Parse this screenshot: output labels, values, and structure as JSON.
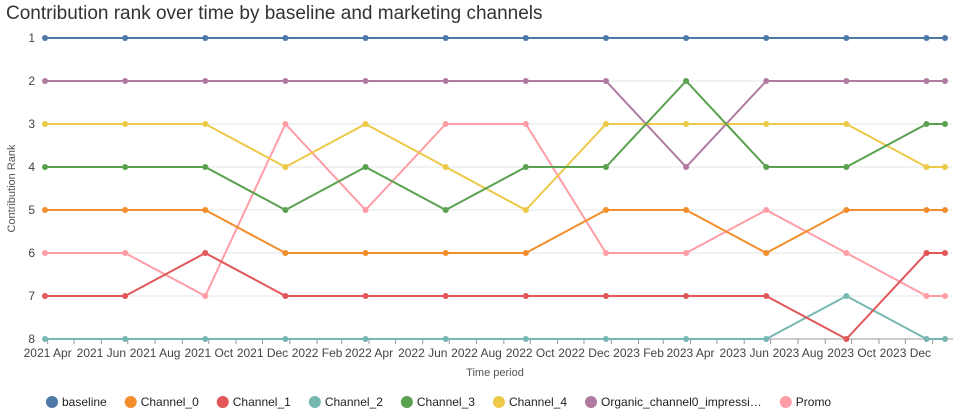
{
  "chart_data": {
    "type": "line",
    "title": "Contribution rank over time by baseline and marketing channels",
    "xlabel": "Time period",
    "ylabel": "Contribution Rank",
    "ylim": [
      1,
      8
    ],
    "y_inverted": true,
    "yticks": [
      "1",
      "2",
      "3",
      "4",
      "5",
      "6",
      "7",
      "8"
    ],
    "xticks": [
      "2021 Apr",
      "2021 Jun",
      "2021 Aug",
      "2021 Oct",
      "2021 Dec",
      "2022 Feb",
      "2022 Apr",
      "2022 Jun",
      "2022 Aug",
      "2022 Oct",
      "2022 Dec",
      "2023 Feb",
      "2023 Apr",
      "2023 Jun",
      "2023 Aug",
      "2023 Oct",
      "2023 Dec"
    ],
    "grid": true,
    "legend_position": "bottom",
    "x": [
      "2021-03-29",
      "2021-06-28",
      "2021-09-27",
      "2021-12-27",
      "2022-03-28",
      "2022-06-27",
      "2022-09-26",
      "2022-12-26",
      "2023-03-27",
      "2023-06-26",
      "2023-09-25",
      "2023-12-25",
      "2024-01-15"
    ],
    "series": [
      {
        "name": "baseline",
        "color": "#4e79a7",
        "values": [
          1,
          1,
          1,
          1,
          1,
          1,
          1,
          1,
          1,
          1,
          1,
          1,
          1
        ]
      },
      {
        "name": "Channel_0",
        "color": "#f28e2b",
        "values": [
          5,
          5,
          5,
          6,
          6,
          6,
          6,
          5,
          5,
          6,
          5,
          5,
          5
        ]
      },
      {
        "name": "Channel_1",
        "color": "#e15759",
        "values": [
          7,
          7,
          6,
          7,
          7,
          7,
          7,
          7,
          7,
          7,
          8,
          6,
          6
        ]
      },
      {
        "name": "Channel_2",
        "color": "#76b7b2",
        "values": [
          8,
          8,
          8,
          8,
          8,
          8,
          8,
          8,
          8,
          8,
          7,
          8,
          8
        ]
      },
      {
        "name": "Channel_3",
        "color": "#59a14f",
        "values": [
          4,
          4,
          4,
          5,
          4,
          5,
          4,
          4,
          2,
          4,
          4,
          3,
          3
        ]
      },
      {
        "name": "Channel_4",
        "color": "#edc948",
        "values": [
          3,
          3,
          3,
          4,
          3,
          4,
          5,
          3,
          3,
          3,
          3,
          4,
          4
        ]
      },
      {
        "name": "Organic_channel0_impressi…",
        "color": "#b07aa1",
        "values": [
          2,
          2,
          2,
          2,
          2,
          2,
          2,
          2,
          4,
          2,
          2,
          2,
          2
        ]
      },
      {
        "name": "Promo",
        "color": "#ff9da7",
        "values": [
          6,
          6,
          7,
          3,
          5,
          3,
          3,
          6,
          6,
          5,
          6,
          7,
          7
        ]
      }
    ]
  }
}
